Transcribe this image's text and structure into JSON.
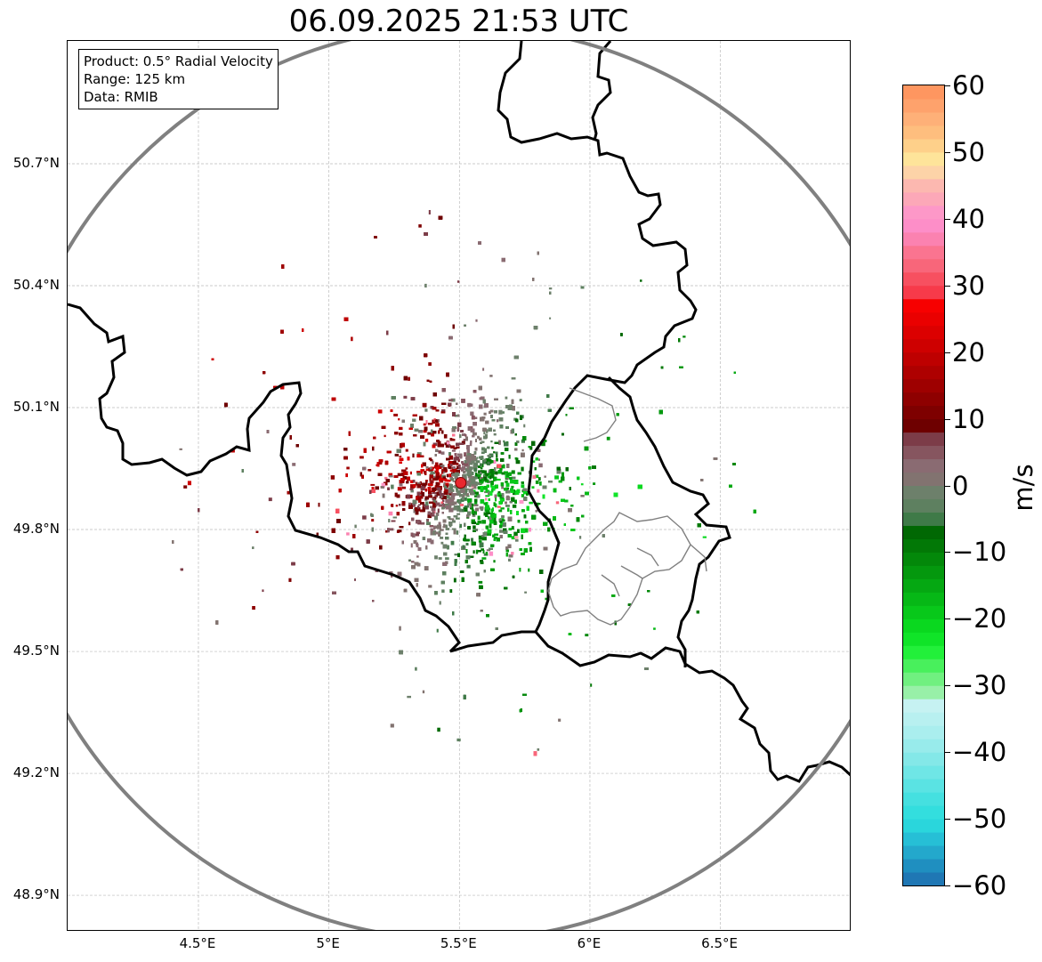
{
  "title": "06.09.2025 21:53 UTC",
  "info_box": {
    "product": "Product: 0.5° Radial Velocity",
    "range": "Range: 125 km",
    "data": "Data: RMIB"
  },
  "map": {
    "lon_range": [
      4.0,
      7.0
    ],
    "lat_range": [
      48.8,
      50.99
    ],
    "lat_ticks": [
      {
        "value": 50.7,
        "label": "50.7°N"
      },
      {
        "value": 50.4,
        "label": "50.4°N"
      },
      {
        "value": 50.1,
        "label": "50.1°N"
      },
      {
        "value": 49.8,
        "label": "49.8°N"
      },
      {
        "value": 49.5,
        "label": "49.5°N"
      },
      {
        "value": 49.2,
        "label": "49.2°N"
      },
      {
        "value": 48.9,
        "label": "48.9°N"
      }
    ],
    "lon_ticks": [
      {
        "value": 4.5,
        "label": "4.5°E"
      },
      {
        "value": 5.0,
        "label": "5°E"
      },
      {
        "value": 5.5,
        "label": "5.5°E"
      },
      {
        "value": 6.0,
        "label": "6°E"
      },
      {
        "value": 6.5,
        "label": "6.5°E"
      }
    ],
    "radar_site": {
      "lon": 5.505,
      "lat": 49.915
    },
    "range_ring_km": 125,
    "grid": true,
    "colors": {
      "ring": "#808080",
      "border": "#000000",
      "subborder": "#808080",
      "site": "#e8282f"
    }
  },
  "colorbar": {
    "unit": "m/s",
    "min": -60,
    "max": 60,
    "ticks": [
      {
        "value": 60,
        "label": "60"
      },
      {
        "value": 50,
        "label": "50"
      },
      {
        "value": 40,
        "label": "40"
      },
      {
        "value": 30,
        "label": "30"
      },
      {
        "value": 20,
        "label": "20"
      },
      {
        "value": 10,
        "label": "10"
      },
      {
        "value": 0,
        "label": "0"
      },
      {
        "value": -10,
        "label": "−10"
      },
      {
        "value": -20,
        "label": "−20"
      },
      {
        "value": -30,
        "label": "−30"
      },
      {
        "value": -40,
        "label": "−40"
      },
      {
        "value": -50,
        "label": "−50"
      },
      {
        "value": -60,
        "label": "−60"
      }
    ],
    "stops": [
      {
        "from": -60,
        "to": -58,
        "color": "#1f77b4"
      },
      {
        "from": -58,
        "to": -56,
        "color": "#1f8fc0"
      },
      {
        "from": -56,
        "to": -54,
        "color": "#23a8cc"
      },
      {
        "from": -54,
        "to": -52,
        "color": "#26bfd6"
      },
      {
        "from": -52,
        "to": -50,
        "color": "#2ad6dc"
      },
      {
        "from": -50,
        "to": -48,
        "color": "#33dede"
      },
      {
        "from": -48,
        "to": -46,
        "color": "#45e0e0"
      },
      {
        "from": -46,
        "to": -44,
        "color": "#5ae3e3"
      },
      {
        "from": -44,
        "to": -42,
        "color": "#6fe6e6"
      },
      {
        "from": -42,
        "to": -40,
        "color": "#84e8e8"
      },
      {
        "from": -40,
        "to": -38,
        "color": "#98ebeb"
      },
      {
        "from": -38,
        "to": -36,
        "color": "#aaeeee"
      },
      {
        "from": -36,
        "to": -34,
        "color": "#b8f0f0"
      },
      {
        "from": -34,
        "to": -32,
        "color": "#c6f2f2"
      },
      {
        "from": -32,
        "to": -30,
        "color": "#98f0a8"
      },
      {
        "from": -30,
        "to": -28,
        "color": "#70f080"
      },
      {
        "from": -28,
        "to": -26,
        "color": "#48f05c"
      },
      {
        "from": -26,
        "to": -24,
        "color": "#22f03a"
      },
      {
        "from": -24,
        "to": -22,
        "color": "#10e428"
      },
      {
        "from": -22,
        "to": -20,
        "color": "#0ad81f"
      },
      {
        "from": -20,
        "to": -18,
        "color": "#08c81a"
      },
      {
        "from": -18,
        "to": -16,
        "color": "#06b816"
      },
      {
        "from": -16,
        "to": -14,
        "color": "#05a812"
      },
      {
        "from": -14,
        "to": -12,
        "color": "#04980e"
      },
      {
        "from": -12,
        "to": -10,
        "color": "#03880a"
      },
      {
        "from": -10,
        "to": -8,
        "color": "#027806"
      },
      {
        "from": -8,
        "to": -6,
        "color": "#016803"
      },
      {
        "from": -6,
        "to": -4,
        "color": "#3f7a48"
      },
      {
        "from": -4,
        "to": -2,
        "color": "#5e8060"
      },
      {
        "from": -2,
        "to": 0,
        "color": "#6d806b"
      },
      {
        "from": 0,
        "to": 2,
        "color": "#827370"
      },
      {
        "from": 2,
        "to": 4,
        "color": "#8a6b72"
      },
      {
        "from": 4,
        "to": 6,
        "color": "#86555f"
      },
      {
        "from": 6,
        "to": 8,
        "color": "#7c3c48"
      },
      {
        "from": 8,
        "to": 10,
        "color": "#6e0000"
      },
      {
        "from": 10,
        "to": 12,
        "color": "#7e0000"
      },
      {
        "from": 12,
        "to": 14,
        "color": "#8e0000"
      },
      {
        "from": 14,
        "to": 16,
        "color": "#9e0000"
      },
      {
        "from": 16,
        "to": 18,
        "color": "#ae0000"
      },
      {
        "from": 18,
        "to": 20,
        "color": "#be0000"
      },
      {
        "from": 20,
        "to": 22,
        "color": "#ce0000"
      },
      {
        "from": 22,
        "to": 24,
        "color": "#dc0000"
      },
      {
        "from": 24,
        "to": 26,
        "color": "#ea0000"
      },
      {
        "from": 26,
        "to": 28,
        "color": "#f70000"
      },
      {
        "from": 28,
        "to": 30,
        "color": "#f73a4a"
      },
      {
        "from": 30,
        "to": 32,
        "color": "#f75060"
      },
      {
        "from": 32,
        "to": 34,
        "color": "#f8667a"
      },
      {
        "from": 34,
        "to": 36,
        "color": "#fa7490"
      },
      {
        "from": 36,
        "to": 38,
        "color": "#fb82b0"
      },
      {
        "from": 38,
        "to": 40,
        "color": "#fd8ec8"
      },
      {
        "from": 40,
        "to": 42,
        "color": "#fd98c8"
      },
      {
        "from": 42,
        "to": 44,
        "color": "#fca8b8"
      },
      {
        "from": 44,
        "to": 46,
        "color": "#fcb8b0"
      },
      {
        "from": 46,
        "to": 48,
        "color": "#fdd3a8"
      },
      {
        "from": 48,
        "to": 50,
        "color": "#fee49a"
      },
      {
        "from": 50,
        "to": 52,
        "color": "#fed08a"
      },
      {
        "from": 52,
        "to": 54,
        "color": "#febe7e"
      },
      {
        "from": 54,
        "to": 56,
        "color": "#feb078"
      },
      {
        "from": 56,
        "to": 58,
        "color": "#fea26c"
      },
      {
        "from": 58,
        "to": 60,
        "color": "#fe9660"
      }
    ]
  }
}
